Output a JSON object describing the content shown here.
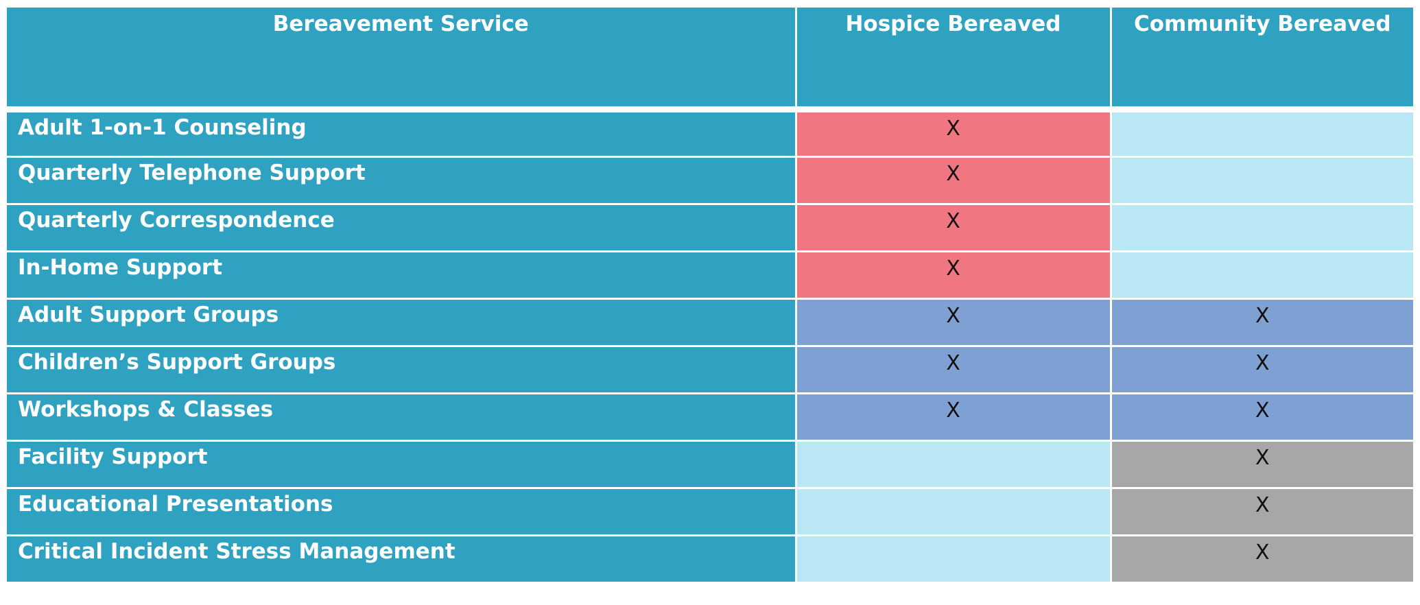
{
  "table": {
    "headers": {
      "service": "Bereavement Service",
      "hospice": "Hospice Bereaved",
      "community": "Community Bereaved"
    },
    "colors": {
      "header": "#2fa2c2",
      "hospice_only": "#f07781",
      "both": "#7fa0d2",
      "community_only": "#a7a7a9",
      "empty": "#b9e7f3"
    },
    "rows": [
      {
        "service": "Adult 1-on-1 Counseling",
        "hospice": "X",
        "community": "",
        "category": "hospice_only"
      },
      {
        "service": "Quarterly Telephone Support",
        "hospice": "X",
        "community": "",
        "category": "hospice_only"
      },
      {
        "service": "Quarterly Correspondence",
        "hospice": "X",
        "community": "",
        "category": "hospice_only"
      },
      {
        "service": "In-Home Support",
        "hospice": "X",
        "community": "",
        "category": "hospice_only"
      },
      {
        "service": "Adult Support Groups",
        "hospice": "X",
        "community": "X",
        "category": "both"
      },
      {
        "service": "Children’s Support Groups",
        "hospice": "X",
        "community": "X",
        "category": "both"
      },
      {
        "service": "Workshops & Classes",
        "hospice": "X",
        "community": "X",
        "category": "both"
      },
      {
        "service": "Facility Support",
        "hospice": "",
        "community": "X",
        "category": "community_only"
      },
      {
        "service": "Educational Presentations",
        "hospice": "",
        "community": "X",
        "category": "community_only"
      },
      {
        "service": "Critical Incident Stress Management",
        "hospice": "",
        "community": "X",
        "category": "community_only"
      }
    ]
  }
}
